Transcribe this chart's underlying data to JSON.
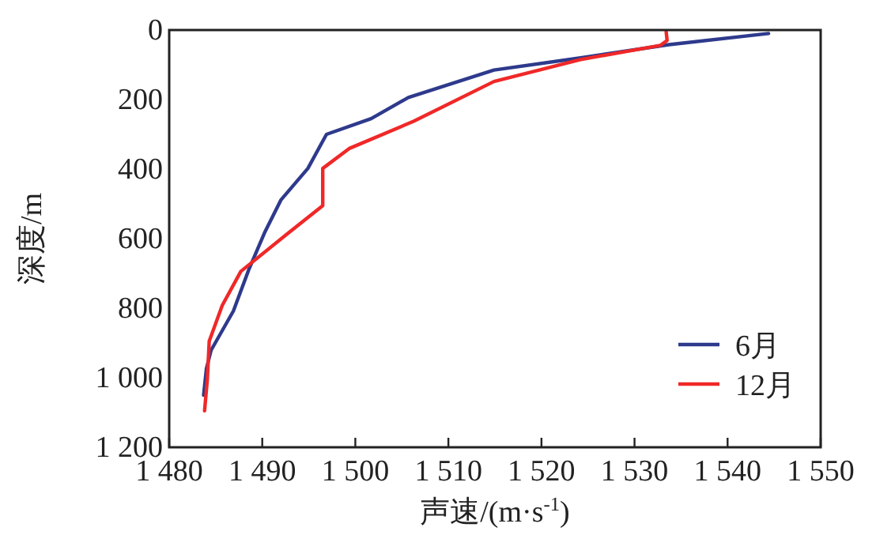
{
  "chart_data": {
    "type": "line",
    "xlabel": "声速/(m·s$^{-1}$)",
    "ylabel": "深度/m",
    "xlim": [
      1480,
      1550
    ],
    "ylim": [
      1200,
      0
    ],
    "xticks": [
      {
        "value": 1480,
        "label": "1 480"
      },
      {
        "value": 1490,
        "label": "1 490"
      },
      {
        "value": 1500,
        "label": "1 500"
      },
      {
        "value": 1510,
        "label": "1 510"
      },
      {
        "value": 1520,
        "label": "1 520"
      },
      {
        "value": 1530,
        "label": "1 530"
      },
      {
        "value": 1540,
        "label": "1 540"
      },
      {
        "value": 1550,
        "label": "1 550"
      }
    ],
    "yticks": [
      0,
      200,
      400,
      600,
      800,
      {
        "value": 1000,
        "label": "1 000"
      },
      {
        "value": 1200,
        "label": "1 200"
      }
    ],
    "legend": "bottom right",
    "grid": false,
    "marker": "none",
    "line_style": "solid",
    "series": [
      {
        "name": "6月",
        "color": "#2e3a8c",
        "x": [
          1544.4,
          1533.7,
          1524.2,
          1514.9,
          1505.7,
          1501.7,
          1496.9,
          1494.9,
          1492,
          1490.3,
          1488.6,
          1486.9,
          1484.5,
          1484,
          1483.7
        ],
        "values": [
          10,
          42,
          80,
          115,
          194,
          255,
          300,
          398,
          489,
          580,
          686,
          808,
          921,
          974,
          1050
        ]
      },
      {
        "name": "12月",
        "color": "#f02828",
        "x": [
          1533.4,
          1533.5,
          1532.8,
          1524.2,
          1514.9,
          1506.3,
          1499.4,
          1496.5,
          1496.5,
          1492.6,
          1487.7,
          1485.7,
          1484.3,
          1484.1,
          1483.8
        ],
        "values": [
          5,
          30,
          44,
          85,
          148,
          262,
          340,
          398,
          505,
          588,
          694,
          792,
          895,
          1005,
          1095
        ]
      }
    ]
  }
}
